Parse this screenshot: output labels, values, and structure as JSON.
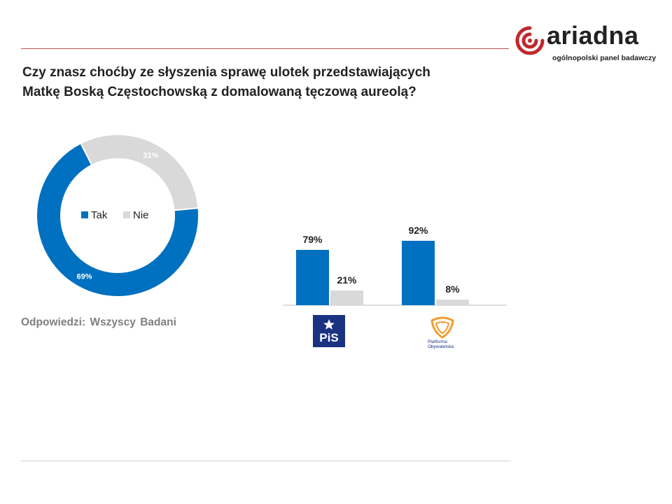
{
  "title_line1": "Czy znasz choćby ze słyszenia sprawę ulotek przedstawiających",
  "title_line2": "Matkę Boską Częstochowską z domalowaną tęczową aureolą?",
  "logo": {
    "name": "ariadna",
    "tagline": "ogólnopolski panel badawczy",
    "icon": "ariadna-swirl-icon",
    "accent": "#c0282d"
  },
  "footnote": "Odpowiedzi: Wszyscy Badani",
  "colors": {
    "tak": "#0070c0",
    "nie": "#d9d9d9",
    "rule_top": "#c0504d",
    "axis": "#bfbfbf"
  },
  "chart_data": [
    {
      "type": "pie",
      "variant": "donut",
      "categories": [
        "Tak",
        "Nie"
      ],
      "values": [
        69,
        31
      ],
      "labels": [
        "69%",
        "31%"
      ],
      "legend_placement": "center"
    },
    {
      "type": "bar",
      "categories": [
        "PiS",
        "Platforma Obywatelska"
      ],
      "series": [
        {
          "name": "Tak",
          "values": [
            79,
            92
          ],
          "labels": [
            "79%",
            "92%"
          ]
        },
        {
          "name": "Nie",
          "values": [
            21,
            8
          ],
          "labels": [
            "21%",
            "8%"
          ]
        }
      ],
      "ylim": [
        0,
        100
      ],
      "grid": false,
      "category_icons": [
        "pis-logo-icon",
        "platforma-obywatelska-logo-icon"
      ],
      "category_icon_text": [
        [
          "PiS"
        ],
        [
          "Platforma",
          "Obywatelska"
        ]
      ]
    }
  ]
}
